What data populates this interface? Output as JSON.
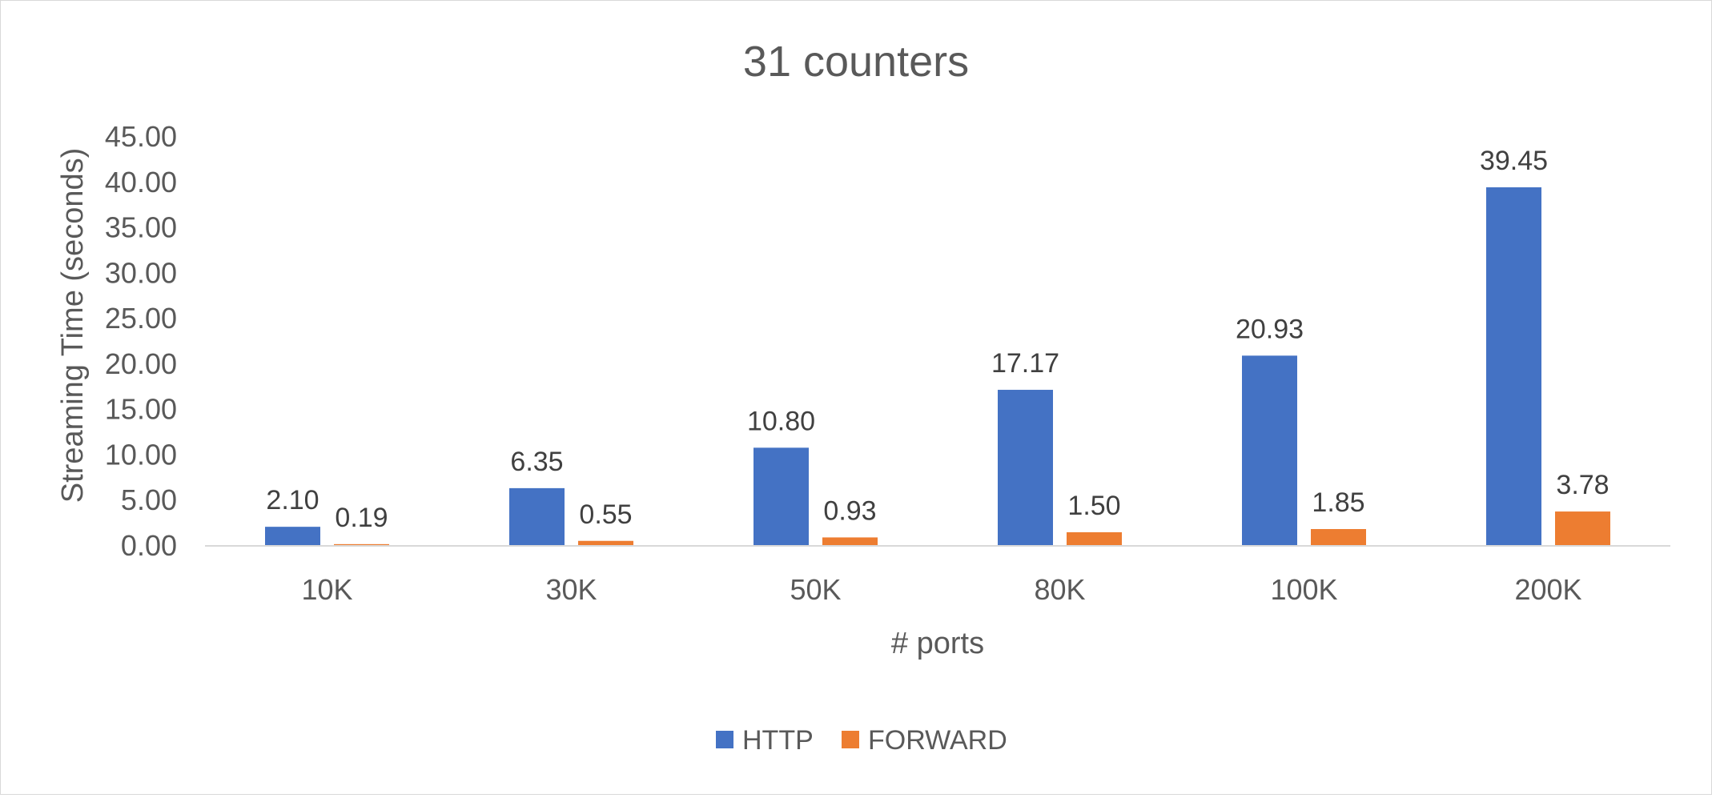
{
  "chart_data": {
    "type": "bar",
    "title": "31 counters",
    "xlabel": "# ports",
    "ylabel": "Streaming Time (seconds)",
    "categories": [
      "10K",
      "30K",
      "50K",
      "80K",
      "100K",
      "200K"
    ],
    "ylim": [
      0,
      45
    ],
    "ytick_step": 5,
    "ytick_labels": [
      "0.00",
      "5.00",
      "10.00",
      "15.00",
      "20.00",
      "25.00",
      "30.00",
      "35.00",
      "40.00",
      "45.00"
    ],
    "grid": false,
    "legend": "bottom",
    "series": [
      {
        "name": "HTTP",
        "color": "#4472C4",
        "values": [
          2.1,
          6.35,
          10.8,
          17.17,
          20.93,
          39.45
        ],
        "labels": [
          "2.10",
          "6.35",
          "10.80",
          "17.17",
          "20.93",
          "39.45"
        ]
      },
      {
        "name": "FORWARD",
        "color": "#ED7D31",
        "values": [
          0.19,
          0.55,
          0.93,
          1.5,
          1.85,
          3.78
        ],
        "labels": [
          "0.19",
          "0.55",
          "0.93",
          "1.50",
          "1.85",
          "3.78"
        ]
      }
    ]
  }
}
